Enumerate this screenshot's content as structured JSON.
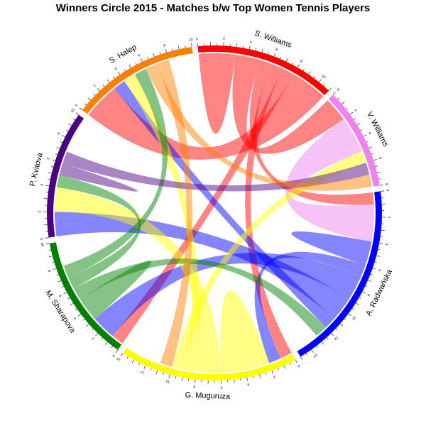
{
  "chart_data": {
    "type": "chord",
    "title": "Winners Circle 2015 - Matches b/w Top Women Tennis Players",
    "players": [
      {
        "name": "S. Williams",
        "color": "#ff0000",
        "total": 11,
        "tick_labels": [
          "0",
          "2",
          "4",
          "6",
          "8",
          "10"
        ]
      },
      {
        "name": "V. Williams",
        "color": "#ee82ee",
        "total": 8,
        "tick_labels": [
          "0",
          "2",
          "4",
          "6",
          "8"
        ]
      },
      {
        "name": "A. Radwańska",
        "color": "#0000ff",
        "total": 15,
        "tick_labels": [
          "0",
          "2",
          "4",
          "6",
          "8",
          "10",
          "12",
          "14"
        ]
      },
      {
        "name": "G. Muguruza",
        "color": "#ffff00",
        "total": 14,
        "tick_labels": [
          "0",
          "2",
          "4",
          "6",
          "8",
          "10",
          "12",
          "14"
        ]
      },
      {
        "name": "M. Sharapova",
        "color": "#008000",
        "total": 10,
        "tick_labels": [
          "0",
          "2",
          "4",
          "6",
          "8",
          "10"
        ]
      },
      {
        "name": "P. Kvitova",
        "color": "#4b0082",
        "total": 10,
        "tick_labels": [
          "0",
          "2",
          "4",
          "6",
          "8",
          "10"
        ]
      },
      {
        "name": "S. Halep",
        "color": "#ff8000",
        "total": 10,
        "tick_labels": [
          "0",
          "2",
          "4",
          "6",
          "8",
          "10"
        ]
      }
    ],
    "links": [
      {
        "source": "S. Williams",
        "target": "S. Williams",
        "value": 3
      },
      {
        "source": "S. Williams",
        "target": "V. Williams",
        "value": 2
      },
      {
        "source": "S. Williams",
        "target": "A. Radwańska",
        "value": 1
      },
      {
        "source": "S. Williams",
        "target": "G. Muguruza",
        "value": 1
      },
      {
        "source": "S. Williams",
        "target": "M. Sharapova",
        "value": 1
      },
      {
        "source": "S. Williams",
        "target": "S. Halep",
        "value": 3
      },
      {
        "source": "V. Williams",
        "target": "A. Radwańska",
        "value": 3
      },
      {
        "source": "A. Radwańska",
        "target": "A. Radwańska",
        "value": 2
      },
      {
        "source": "A. Radwańska",
        "target": "G. Muguruza",
        "value": 1
      },
      {
        "source": "A. Radwańska",
        "target": "M. Sharapova",
        "value": 2
      },
      {
        "source": "A. Radwańska",
        "target": "P. Kvitova",
        "value": 2
      },
      {
        "source": "A. Radwańska",
        "target": "S. Halep",
        "value": 1
      },
      {
        "source": "G. Muguruza",
        "target": "G. Muguruza",
        "value": 4
      },
      {
        "source": "G. Muguruza",
        "target": "P. Kvitova",
        "value": 2
      },
      {
        "source": "G. Muguruza",
        "target": "S. Halep",
        "value": 1
      },
      {
        "source": "G. Muguruza",
        "target": "V. Williams",
        "value": 1
      },
      {
        "source": "M. Sharapova",
        "target": "M. Sharapova",
        "value": 2
      },
      {
        "source": "M. Sharapova",
        "target": "A. Radwańska",
        "value": 1
      },
      {
        "source": "M. Sharapova",
        "target": "P. Kvitova",
        "value": 1
      },
      {
        "source": "M. Sharapova",
        "target": "S. Halep",
        "value": 1
      },
      {
        "source": "P. Kvitova",
        "target": "P. Kvitova",
        "value": 1
      },
      {
        "source": "P. Kvitova",
        "target": "V. Williams",
        "value": 1
      },
      {
        "source": "S. Halep",
        "target": "V. Williams",
        "value": 1
      },
      {
        "source": "S. Halep",
        "target": "G. Muguruza",
        "value": 1
      }
    ]
  }
}
